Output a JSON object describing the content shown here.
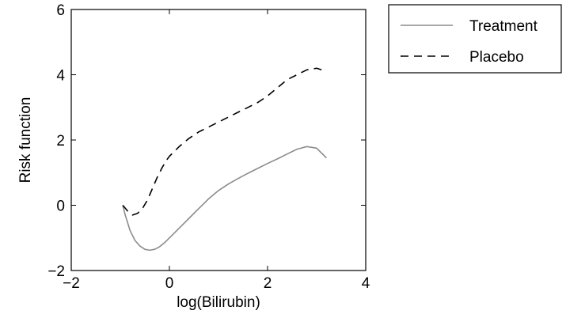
{
  "chart_data": {
    "type": "line",
    "title": "",
    "xlabel": "log(Bilirubin)",
    "ylabel": "Risk function",
    "xlim": [
      -2,
      4
    ],
    "ylim": [
      -2,
      6
    ],
    "xticks": [
      -2,
      0,
      2,
      4
    ],
    "yticks": [
      -2,
      0,
      2,
      4,
      6
    ],
    "grid": false,
    "legend_position": "outside-top-right",
    "series": [
      {
        "name": "Treatment",
        "style": "solid",
        "color": "#8c8c8c",
        "x": [
          -0.95,
          -0.9,
          -0.8,
          -0.7,
          -0.6,
          -0.5,
          -0.4,
          -0.3,
          -0.2,
          -0.1,
          0.0,
          0.2,
          0.4,
          0.6,
          0.8,
          1.0,
          1.2,
          1.4,
          1.6,
          1.8,
          2.0,
          2.2,
          2.4,
          2.6,
          2.8,
          3.0,
          3.1,
          3.2
        ],
        "y": [
          0.0,
          -0.3,
          -0.78,
          -1.08,
          -1.25,
          -1.35,
          -1.38,
          -1.35,
          -1.27,
          -1.15,
          -1.0,
          -0.7,
          -0.4,
          -0.1,
          0.2,
          0.45,
          0.65,
          0.82,
          0.98,
          1.13,
          1.28,
          1.42,
          1.57,
          1.72,
          1.8,
          1.75,
          1.6,
          1.45
        ]
      },
      {
        "name": "Placebo",
        "style": "dashed",
        "color": "#000000",
        "x": [
          -0.95,
          -0.85,
          -0.75,
          -0.65,
          -0.55,
          -0.45,
          -0.35,
          -0.25,
          -0.15,
          -0.05,
          0.0,
          0.2,
          0.4,
          0.6,
          0.8,
          1.0,
          1.2,
          1.4,
          1.6,
          1.8,
          2.0,
          2.2,
          2.4,
          2.6,
          2.8,
          3.0,
          3.1,
          3.2
        ],
        "y": [
          0.0,
          -0.18,
          -0.3,
          -0.25,
          -0.1,
          0.15,
          0.5,
          0.85,
          1.15,
          1.4,
          1.5,
          1.8,
          2.05,
          2.25,
          2.4,
          2.55,
          2.7,
          2.85,
          3.0,
          3.15,
          3.35,
          3.6,
          3.85,
          4.0,
          4.15,
          4.2,
          4.15,
          4.1
        ]
      }
    ]
  }
}
